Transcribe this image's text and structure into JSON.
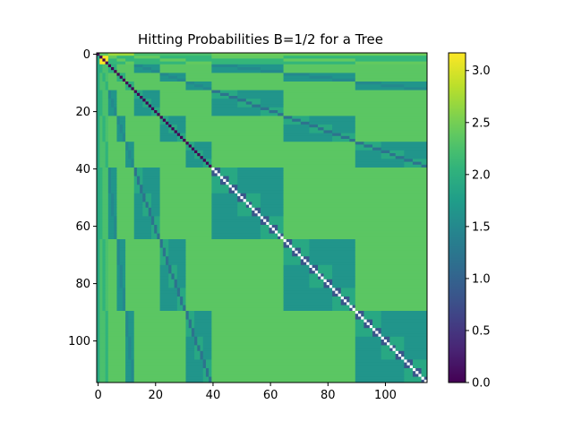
{
  "chart_data": {
    "type": "heatmap",
    "title": "Hitting Probabilities B=1/2 for a Tree",
    "xlabel": "",
    "ylabel": "",
    "n": 115,
    "xlim": [
      0,
      114
    ],
    "ylim": [
      114,
      0
    ],
    "x_ticks": [
      0,
      20,
      40,
      60,
      80,
      100
    ],
    "y_ticks": [
      0,
      20,
      40,
      60,
      80,
      100
    ],
    "x_tick_labels": [
      "0",
      "20",
      "40",
      "60",
      "80",
      "100"
    ],
    "y_tick_labels": [
      "0",
      "20",
      "40",
      "60",
      "80",
      "100"
    ],
    "colorbar": {
      "min": 0.0,
      "max": 3.17,
      "ticks": [
        0.0,
        0.5,
        1.0,
        1.5,
        2.0,
        2.5,
        3.0
      ],
      "tick_labels": [
        "0.0",
        "0.5",
        "1.0",
        "1.5",
        "2.0",
        "2.5",
        "3.0"
      ],
      "colormap": "viridis"
    },
    "structure": {
      "root": 0,
      "depth1_nodes": [
        1,
        2,
        3
      ],
      "depth2_groups": [
        [
          4,
          5,
          6
        ],
        [
          7,
          8,
          9
        ],
        [
          10,
          11,
          12
        ]
      ],
      "depth2_range": [
        4,
        12
      ],
      "depth3_range": [
        13,
        39
      ],
      "depth4_range": [
        40,
        114
      ],
      "block_values": {
        "root_row": 0.0,
        "root_to_depth1": 2.4,
        "root_to_depth2": 2.7,
        "root_to_depth3": 2.25,
        "root_to_depth4": 2.45,
        "depth1_to_depth1": 3.17,
        "depth1_sibling_subtree": 2.4,
        "depth1_other_subtree": 2.1,
        "depth2_internal": 1.5,
        "depth2_to_depth2_same": 2.0,
        "depth2_to_depth2_other": 1.65,
        "depth3_internal": 1.2,
        "depth3_other": 1.9,
        "depth4_diag_block": 0.85,
        "depth4_other": 1.55,
        "lower_left_col_root": 1.9,
        "lower_left_col_depth1": 2.25,
        "lower_left_col_depth1_subtree": 2.05,
        "lower_left_col_depth1_other": 2.35,
        "diag_zero": 0.0,
        "diag_white": "nan"
      }
    }
  }
}
